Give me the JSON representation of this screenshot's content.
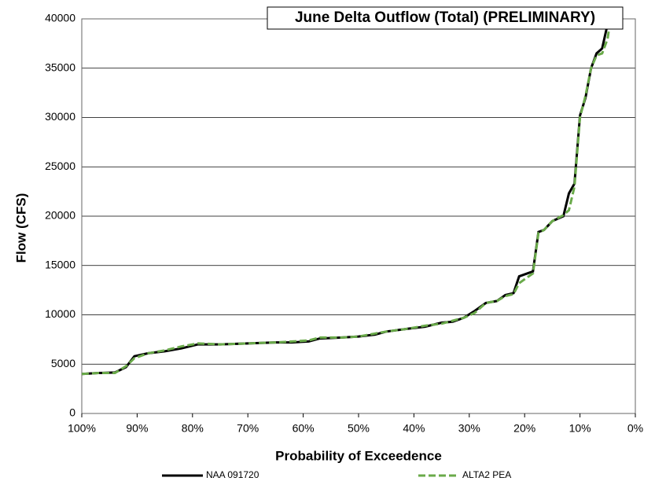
{
  "chart_data": {
    "type": "line",
    "title": "June Delta Outflow (Total) (PRELIMINARY)",
    "x_label": "Probability of Exceedence",
    "y_label": "Flow (CFS)",
    "x": [
      100,
      97,
      94,
      92,
      90.5,
      88,
      85,
      82,
      79,
      75,
      70,
      65,
      62,
      59,
      57,
      53,
      50,
      47,
      45,
      41,
      38,
      35,
      33,
      31,
      29,
      27,
      25,
      23.5,
      22,
      21,
      19.5,
      18.5,
      17.5,
      16.5,
      15,
      13,
      12,
      11,
      10,
      9,
      8,
      7,
      6,
      5,
      4.5
    ],
    "series": [
      {
        "name": "NAA 091720",
        "color": "#000000",
        "style": "solid",
        "values": [
          4000,
          4100,
          4150,
          4700,
          5800,
          6100,
          6300,
          6600,
          7000,
          7000,
          7100,
          7200,
          7200,
          7300,
          7600,
          7700,
          7800,
          8000,
          8300,
          8600,
          8800,
          9200,
          9300,
          9700,
          10400,
          11200,
          11400,
          12000,
          12200,
          13900,
          14200,
          14400,
          18400,
          18600,
          19500,
          20000,
          22300,
          23300,
          30200,
          32000,
          35000,
          36500,
          37000,
          39500,
          40000
        ]
      },
      {
        "name": "ALTA2 PEA",
        "color": "#6aaa4a",
        "style": "dashed",
        "values": [
          4000,
          4100,
          4100,
          4800,
          5600,
          6100,
          6400,
          6800,
          7100,
          7000,
          7100,
          7200,
          7300,
          7400,
          7700,
          7700,
          7800,
          8100,
          8300,
          8600,
          8900,
          9100,
          9400,
          9700,
          10200,
          11200,
          11400,
          11900,
          12100,
          13200,
          13800,
          14200,
          18300,
          18600,
          19500,
          20100,
          20600,
          23000,
          30000,
          32200,
          35000,
          36300,
          36500,
          38000,
          40000
        ]
      }
    ],
    "xlim": [
      100,
      0
    ],
    "xticks": [
      {
        "value": 100,
        "label": "100%"
      },
      {
        "value": 90,
        "label": "90%"
      },
      {
        "value": 80,
        "label": "80%"
      },
      {
        "value": 70,
        "label": "70%"
      },
      {
        "value": 60,
        "label": "60%"
      },
      {
        "value": 50,
        "label": "50%"
      },
      {
        "value": 40,
        "label": "40%"
      },
      {
        "value": 30,
        "label": "30%"
      },
      {
        "value": 20,
        "label": "20%"
      },
      {
        "value": 10,
        "label": "10%"
      },
      {
        "value": 0,
        "label": "0%"
      }
    ],
    "ylim": [
      0,
      40000
    ],
    "yticks": [
      0,
      5000,
      10000,
      15000,
      20000,
      25000,
      30000,
      35000,
      40000
    ],
    "grid": true,
    "legend": "bottom"
  }
}
